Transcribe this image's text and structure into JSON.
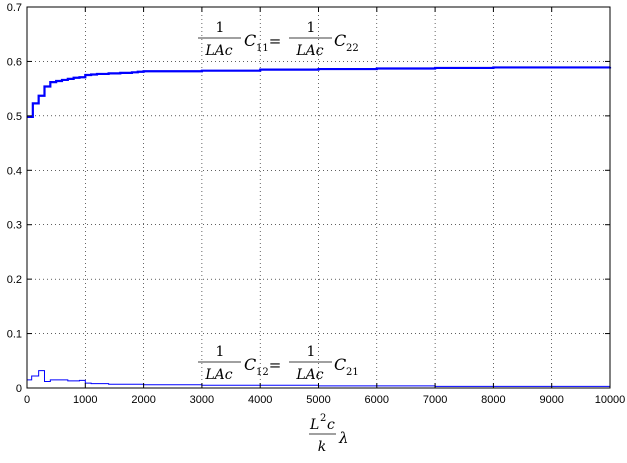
{
  "chart_data": {
    "type": "line",
    "step": true,
    "xlim": [
      0,
      10000
    ],
    "ylim": [
      0,
      0.7
    ],
    "x_ticks": [
      0,
      1000,
      2000,
      3000,
      4000,
      5000,
      6000,
      7000,
      8000,
      9000,
      10000
    ],
    "y_ticks": [
      0,
      0.1,
      0.2,
      0.3,
      0.4,
      0.5,
      0.6,
      0.7
    ],
    "x_tick_labels": [
      "0",
      "1000",
      "2000",
      "3000",
      "4000",
      "5000",
      "6000",
      "7000",
      "8000",
      "9000",
      "10000"
    ],
    "y_tick_labels": [
      "0",
      "0.1",
      "0.2",
      "0.3",
      "0.4",
      "0.5",
      "0.6",
      "0.7"
    ],
    "grid": true,
    "xlabel": {
      "num_base": "L",
      "num_exp": "2",
      "num_tail": "c",
      "den": "k",
      "after": "λ"
    },
    "series": [
      {
        "label": {
          "lhs_num": "1",
          "lhs_den": "LAc",
          "lhs_sym": "C",
          "lhs_sub": "11",
          "eq": "=",
          "rhs_num": "1",
          "rhs_den": "LAc",
          "rhs_sym": "C",
          "rhs_sub": "22"
        },
        "color": "#0000ff",
        "line_width": 2.2,
        "x": [
          0,
          100,
          200,
          300,
          400,
          500,
          600,
          700,
          800,
          900,
          1000,
          1100,
          1200,
          1300,
          1400,
          1500,
          1600,
          1700,
          1800,
          1900,
          2000,
          2500,
          3000,
          4000,
          5000,
          6000,
          7000,
          8000,
          9000,
          10000
        ],
        "y": [
          0.498,
          0.523,
          0.537,
          0.554,
          0.562,
          0.564,
          0.566,
          0.568,
          0.57,
          0.571,
          0.575,
          0.576,
          0.577,
          0.577,
          0.578,
          0.578,
          0.579,
          0.579,
          0.58,
          0.581,
          0.582,
          0.582,
          0.583,
          0.585,
          0.586,
          0.587,
          0.588,
          0.589,
          0.589,
          0.59
        ]
      },
      {
        "label": {
          "lhs_num": "1",
          "lhs_den": "LAc",
          "lhs_sym": "C",
          "lhs_sub": "12",
          "eq": "=",
          "rhs_num": "1",
          "rhs_den": "LAc",
          "rhs_sym": "C",
          "rhs_sub": "21"
        },
        "color": "#0000ff",
        "line_width": 1,
        "x": [
          0,
          80,
          200,
          300,
          400,
          700,
          900,
          1000,
          1100,
          1400,
          1800,
          2000,
          2500,
          3000,
          4000,
          5000,
          6000,
          7000,
          8000,
          9000,
          10000
        ],
        "y": [
          0.015,
          0.022,
          0.032,
          0.012,
          0.015,
          0.013,
          0.014,
          0.009,
          0.008,
          0.007,
          0.007,
          0.006,
          0.006,
          0.005,
          0.005,
          0.004,
          0.004,
          0.003,
          0.003,
          0.003,
          0.002
        ]
      }
    ]
  }
}
